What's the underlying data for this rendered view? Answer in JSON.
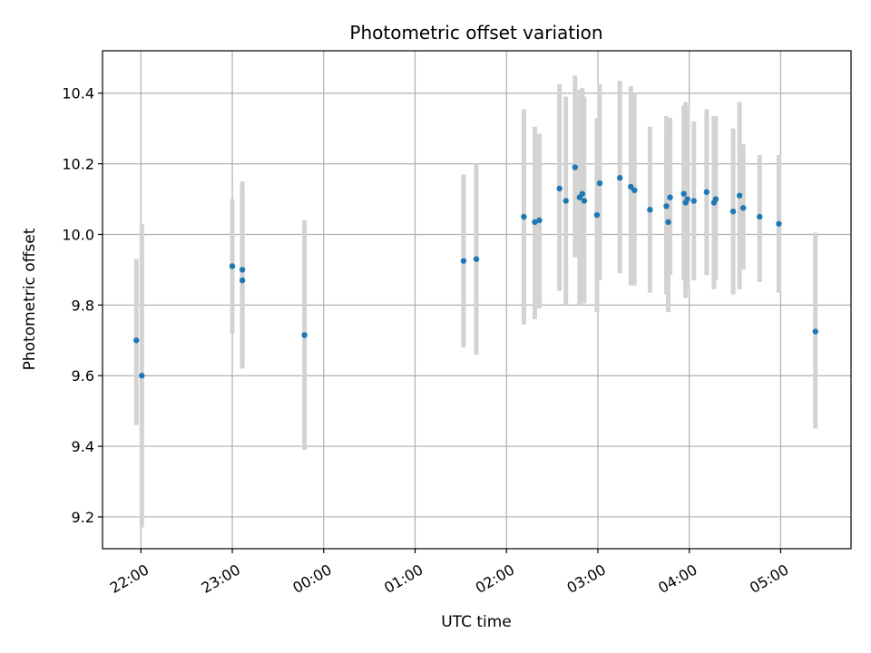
{
  "chart_data": {
    "type": "scatter",
    "title": "Photometric offset variation",
    "xlabel": "UTC time",
    "ylabel": "Photometric offset",
    "x_unit": "hours",
    "xlim": [
      -2.42,
      5.77
    ],
    "ylim": [
      9.11,
      10.52
    ],
    "grid": true,
    "x_ticks": [
      {
        "value": -2,
        "label": "22:00"
      },
      {
        "value": -1,
        "label": "23:00"
      },
      {
        "value": 0,
        "label": "00:00"
      },
      {
        "value": 1,
        "label": "01:00"
      },
      {
        "value": 2,
        "label": "02:00"
      },
      {
        "value": 3,
        "label": "03:00"
      },
      {
        "value": 4,
        "label": "04:00"
      },
      {
        "value": 5,
        "label": "05:00"
      }
    ],
    "y_ticks": [
      {
        "value": 9.2,
        "label": "9.2"
      },
      {
        "value": 9.4,
        "label": "9.4"
      },
      {
        "value": 9.6,
        "label": "9.6"
      },
      {
        "value": 9.8,
        "label": "9.8"
      },
      {
        "value": 10.0,
        "label": "10.0"
      },
      {
        "value": 10.2,
        "label": "10.2"
      },
      {
        "value": 10.4,
        "label": "10.4"
      }
    ],
    "colors": {
      "points": "#1f77b4",
      "error_bars": "#d3d3d3",
      "grid": "#b0b0b0"
    },
    "points": [
      {
        "x": -2.05,
        "y": 9.7,
        "y_low": 9.46,
        "y_high": 9.93
      },
      {
        "x": -1.99,
        "y": 9.6,
        "y_low": 9.17,
        "y_high": 10.03
      },
      {
        "x": -1.0,
        "y": 9.91,
        "y_low": 9.72,
        "y_high": 10.1
      },
      {
        "x": -0.89,
        "y": 9.9,
        "y_low": 9.65,
        "y_high": 10.15
      },
      {
        "x": -0.89,
        "y": 9.87,
        "y_low": 9.62,
        "y_high": 10.12
      },
      {
        "x": -0.21,
        "y": 9.715,
        "y_low": 9.39,
        "y_high": 10.04
      },
      {
        "x": 1.53,
        "y": 9.925,
        "y_low": 9.68,
        "y_high": 10.17
      },
      {
        "x": 1.67,
        "y": 9.93,
        "y_low": 9.66,
        "y_high": 10.2
      },
      {
        "x": 2.19,
        "y": 10.05,
        "y_low": 9.745,
        "y_high": 10.355
      },
      {
        "x": 2.31,
        "y": 10.035,
        "y_low": 9.76,
        "y_high": 10.305
      },
      {
        "x": 2.36,
        "y": 10.04,
        "y_low": 9.79,
        "y_high": 10.285
      },
      {
        "x": 2.58,
        "y": 10.13,
        "y_low": 9.84,
        "y_high": 10.425
      },
      {
        "x": 2.65,
        "y": 10.095,
        "y_low": 9.8,
        "y_high": 10.39
      },
      {
        "x": 2.75,
        "y": 10.19,
        "y_low": 9.935,
        "y_high": 10.45
      },
      {
        "x": 2.8,
        "y": 10.105,
        "y_low": 9.8,
        "y_high": 10.41
      },
      {
        "x": 2.83,
        "y": 10.115,
        "y_low": 9.805,
        "y_high": 10.415
      },
      {
        "x": 2.85,
        "y": 10.095,
        "y_low": 9.805,
        "y_high": 10.39
      },
      {
        "x": 2.99,
        "y": 10.055,
        "y_low": 9.78,
        "y_high": 10.33
      },
      {
        "x": 3.02,
        "y": 10.145,
        "y_low": 9.87,
        "y_high": 10.425
      },
      {
        "x": 3.24,
        "y": 10.16,
        "y_low": 9.89,
        "y_high": 10.435
      },
      {
        "x": 3.36,
        "y": 10.135,
        "y_low": 9.855,
        "y_high": 10.42
      },
      {
        "x": 3.4,
        "y": 10.125,
        "y_low": 9.855,
        "y_high": 10.4
      },
      {
        "x": 3.57,
        "y": 10.07,
        "y_low": 9.835,
        "y_high": 10.305
      },
      {
        "x": 3.75,
        "y": 10.08,
        "y_low": 9.83,
        "y_high": 10.335
      },
      {
        "x": 3.77,
        "y": 10.035,
        "y_low": 9.78,
        "y_high": 10.29
      },
      {
        "x": 3.79,
        "y": 10.105,
        "y_low": 9.885,
        "y_high": 10.33
      },
      {
        "x": 3.94,
        "y": 10.115,
        "y_low": 9.87,
        "y_high": 10.365
      },
      {
        "x": 3.96,
        "y": 10.09,
        "y_low": 9.82,
        "y_high": 10.375
      },
      {
        "x": 3.98,
        "y": 10.1,
        "y_low": 9.84,
        "y_high": 10.36
      },
      {
        "x": 4.05,
        "y": 10.095,
        "y_low": 9.87,
        "y_high": 10.32
      },
      {
        "x": 4.19,
        "y": 10.12,
        "y_low": 9.885,
        "y_high": 10.355
      },
      {
        "x": 4.27,
        "y": 10.09,
        "y_low": 9.845,
        "y_high": 10.335
      },
      {
        "x": 4.29,
        "y": 10.1,
        "y_low": 9.87,
        "y_high": 10.335
      },
      {
        "x": 4.48,
        "y": 10.065,
        "y_low": 9.83,
        "y_high": 10.3
      },
      {
        "x": 4.55,
        "y": 10.11,
        "y_low": 9.845,
        "y_high": 10.375
      },
      {
        "x": 4.59,
        "y": 10.075,
        "y_low": 9.9,
        "y_high": 10.255
      },
      {
        "x": 4.77,
        "y": 10.05,
        "y_low": 9.865,
        "y_high": 10.225
      },
      {
        "x": 4.98,
        "y": 10.03,
        "y_low": 9.835,
        "y_high": 10.225
      },
      {
        "x": 5.38,
        "y": 9.725,
        "y_low": 9.45,
        "y_high": 10.005
      }
    ]
  }
}
